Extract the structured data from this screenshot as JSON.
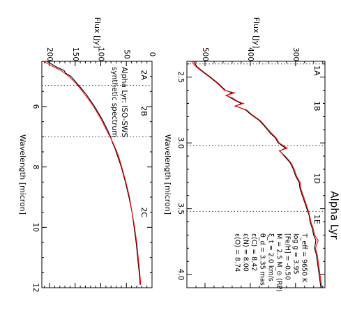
{
  "chart_data": [
    {
      "type": "line",
      "orientation": "rotated-90-ccw",
      "title": "",
      "xlabel": "Wavelength [micron]",
      "ylabel": "Flux [Jy]",
      "xlim": [
        4.5,
        12
      ],
      "ylim": [
        0,
        215
      ],
      "x_ticks": [
        6,
        8,
        10,
        12
      ],
      "y_ticks": [
        0,
        50,
        100,
        150,
        200
      ],
      "band_boundaries": [
        5.3,
        7.0
      ],
      "band_labels": [
        {
          "label": "2A",
          "x": 4.95
        },
        {
          "label": "2B",
          "x": 6.15
        },
        {
          "label": "2C",
          "x": 9.5
        }
      ],
      "legend": [
        "Alpha Lyr: ISO-SWS",
        "synthetic spectrum"
      ],
      "legend_placement": "top-left",
      "series": [
        {
          "name": "Alpha Lyr: ISO-SWS",
          "color": "#000000",
          "x": [
            4.5,
            4.6,
            4.7,
            4.8,
            4.9,
            5.0,
            5.2,
            5.4,
            5.6,
            5.8,
            6.0,
            6.2,
            6.4,
            6.6,
            6.8,
            7.0,
            7.2,
            7.4,
            7.6,
            8.0,
            8.5,
            9.0,
            9.5,
            10.0,
            10.5,
            11.0,
            11.5,
            11.9
          ],
          "y": [
            205,
            195,
            185,
            172,
            168,
            158,
            148,
            138,
            128,
            120,
            112,
            105,
            98,
            92,
            86,
            81,
            77,
            72,
            68,
            60,
            52,
            45,
            39,
            35,
            31,
            28,
            25,
            23
          ]
        },
        {
          "name": "synthetic spectrum",
          "color": "#ff0000",
          "x": [
            4.5,
            4.6,
            4.7,
            4.8,
            4.9,
            5.0,
            5.2,
            5.4,
            5.6,
            5.8,
            6.0,
            6.2,
            6.4,
            6.6,
            6.8,
            7.0,
            7.2,
            7.4,
            7.6,
            8.0,
            8.5,
            9.0,
            9.5,
            10.0,
            10.5,
            11.0,
            11.5,
            11.9
          ],
          "y": [
            212,
            201,
            190,
            178,
            170,
            162,
            150,
            140,
            131,
            122,
            114,
            107,
            100,
            94,
            88,
            82,
            76,
            71,
            66,
            59,
            51,
            44,
            39,
            34,
            30,
            27,
            24,
            22
          ]
        }
      ]
    },
    {
      "type": "line",
      "orientation": "rotated-90-ccw",
      "title": "Alpha Lyr",
      "xlabel": "Wavelength [micron]",
      "ylabel": "Flux [Jy]",
      "xlim": [
        2.38,
        4.1
      ],
      "ylim": [
        235,
        540
      ],
      "x_ticks": [
        2.5,
        3.0,
        3.5,
        4.0
      ],
      "y_ticks": [
        300,
        400,
        500
      ],
      "band_boundaries": [
        2.4,
        3.02,
        3.52
      ],
      "band_labels": [
        {
          "label": "1A",
          "x": 2.45
        },
        {
          "label": "1B",
          "x": 2.72
        },
        {
          "label": "1D",
          "x": 3.27
        },
        {
          "label": "1E",
          "x": 3.58
        }
      ],
      "parameters": [
        "T_eff = 9650 K",
        "log g = 3.95",
        "[Fe/H] = -0.50",
        "M = 2.5 M_⊙ (RP)",
        "ξ_t = 2.0 km/s",
        "θ_d = 3.35 mas",
        "ε(C) = 8.42",
        "ε(N) = 8.00",
        "ε(O) = 8.74"
      ],
      "series": [
        {
          "name": "Alpha Lyr: ISO-SWS",
          "color": "#000000",
          "x": [
            2.38,
            2.42,
            2.47,
            2.5,
            2.55,
            2.6,
            2.62,
            2.64,
            2.66,
            2.68,
            2.7,
            2.72,
            2.75,
            2.78,
            2.8,
            2.83,
            2.86,
            2.9,
            2.93,
            2.96,
            3.0,
            3.04,
            3.06,
            3.1,
            3.15,
            3.2,
            3.25,
            3.3,
            3.35,
            3.4,
            3.45,
            3.5,
            3.55,
            3.6,
            3.65,
            3.7,
            3.74,
            3.8,
            3.85,
            3.9,
            3.95,
            4.0,
            4.05,
            4.1
          ],
          "y": [
            525,
            518,
            500,
            488,
            470,
            455,
            440,
            452,
            442,
            432,
            420,
            432,
            410,
            400,
            392,
            380,
            372,
            362,
            355,
            345,
            338,
            322,
            335,
            325,
            312,
            305,
            300,
            292,
            290,
            285,
            280,
            275,
            270,
            268,
            263,
            260,
            255,
            258,
            254,
            252,
            250,
            248,
            246,
            244
          ]
        },
        {
          "name": "synthetic spectrum",
          "color": "#ff0000",
          "x": [
            2.38,
            2.42,
            2.47,
            2.5,
            2.55,
            2.6,
            2.62,
            2.64,
            2.66,
            2.68,
            2.7,
            2.72,
            2.75,
            2.78,
            2.8,
            2.83,
            2.86,
            2.9,
            2.93,
            2.96,
            3.0,
            3.04,
            3.06,
            3.1,
            3.15,
            3.2,
            3.25,
            3.3,
            3.35,
            3.4,
            3.45,
            3.5,
            3.55,
            3.6,
            3.65,
            3.7,
            3.74,
            3.8,
            3.85,
            3.9,
            3.95,
            4.0,
            4.05,
            4.1
          ],
          "y": [
            530,
            520,
            502,
            490,
            472,
            457,
            435,
            454,
            438,
            430,
            415,
            434,
            408,
            398,
            390,
            378,
            370,
            360,
            352,
            343,
            336,
            318,
            336,
            323,
            310,
            303,
            298,
            290,
            288,
            283,
            278,
            273,
            269,
            266,
            261,
            258,
            250,
            256,
            252,
            250,
            248,
            246,
            244,
            242
          ]
        }
      ]
    }
  ]
}
